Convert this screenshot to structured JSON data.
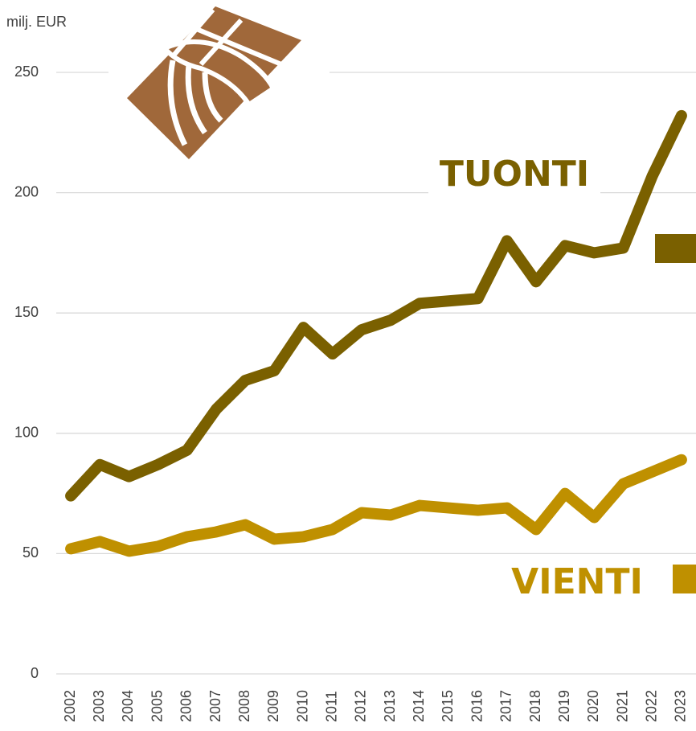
{
  "chart_data": {
    "type": "line",
    "y_label": "milj. EUR",
    "categories": [
      "2002",
      "2003",
      "2004",
      "2005",
      "2006",
      "2007",
      "2008",
      "2009",
      "2010",
      "2011",
      "2012",
      "2013",
      "2014",
      "2015",
      "2016",
      "2017",
      "2018",
      "2019",
      "2020",
      "2021",
      "2022",
      "2023"
    ],
    "series": [
      {
        "name": "TUONTI",
        "color": "#7a6000",
        "values": [
          74,
          87,
          82,
          87,
          93,
          110,
          122,
          126,
          144,
          133,
          143,
          147,
          154,
          155,
          156,
          180,
          163,
          178,
          175,
          177,
          207,
          232
        ]
      },
      {
        "name": "VIENTI",
        "color": "#bf9000",
        "values": [
          52,
          55,
          51,
          53,
          57,
          59,
          62,
          56,
          57,
          60,
          67,
          66,
          70,
          69,
          68,
          69,
          60,
          75,
          65,
          79,
          84,
          89
        ]
      }
    ],
    "ylim": [
      0,
      250
    ],
    "yticks": [
      0,
      50,
      100,
      150,
      200,
      250
    ],
    "grid": true
  }
}
